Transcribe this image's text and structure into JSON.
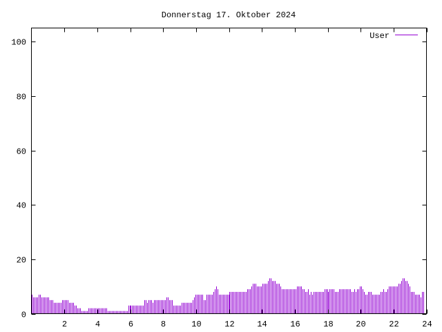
{
  "chart_data": {
    "type": "bar",
    "title": "Donnerstag 17. Oktober 2024",
    "xlabel": "",
    "ylabel": "",
    "xlim": [
      0,
      24
    ],
    "ylim": [
      0,
      105
    ],
    "x_ticks": [
      2,
      4,
      6,
      8,
      10,
      12,
      14,
      16,
      18,
      20,
      22,
      24
    ],
    "y_ticks": [
      0,
      20,
      40,
      60,
      80,
      100
    ],
    "grid": false,
    "legend_position": "top-right",
    "x_interval_minutes": 5,
    "series": [
      {
        "name": "User",
        "color": "#9400d3",
        "values": [
          7,
          6,
          6,
          6,
          6,
          7,
          7,
          6,
          6,
          6,
          6,
          6,
          6,
          5,
          5,
          5,
          4,
          4,
          4,
          4,
          4,
          4,
          5,
          5,
          5,
          5,
          5,
          4,
          4,
          4,
          4,
          3,
          3,
          2,
          2,
          2,
          1,
          1,
          1,
          1,
          1,
          2,
          2,
          2,
          2,
          2,
          2,
          2,
          2,
          2,
          2,
          2,
          2,
          2,
          2,
          1,
          1,
          1,
          1,
          1,
          1,
          1,
          1,
          1,
          1,
          1,
          1,
          1,
          1,
          1,
          3,
          3,
          3,
          3,
          3,
          3,
          3,
          3,
          3,
          3,
          3,
          3,
          5,
          5,
          4,
          5,
          5,
          5,
          4,
          5,
          5,
          5,
          5,
          5,
          5,
          5,
          5,
          5,
          6,
          6,
          5,
          5,
          5,
          3,
          3,
          3,
          3,
          3,
          3,
          4,
          4,
          4,
          4,
          4,
          4,
          4,
          4,
          5,
          6,
          7,
          7,
          7,
          7,
          7,
          7,
          5,
          5,
          7,
          7,
          7,
          7,
          7,
          8,
          9,
          10,
          9,
          7,
          7,
          7,
          7,
          7,
          7,
          7,
          7,
          8,
          8,
          8,
          8,
          8,
          8,
          8,
          8,
          8,
          8,
          8,
          8,
          8,
          9,
          9,
          9,
          10,
          11,
          11,
          11,
          10,
          10,
          10,
          10,
          11,
          11,
          11,
          11,
          12,
          13,
          13,
          12,
          12,
          12,
          11,
          11,
          11,
          10,
          9,
          9,
          9,
          9,
          9,
          9,
          9,
          9,
          9,
          9,
          9,
          10,
          10,
          10,
          10,
          9,
          9,
          8,
          8,
          9,
          7,
          8,
          7,
          8,
          8,
          8,
          8,
          8,
          8,
          8,
          8,
          9,
          9,
          9,
          8,
          9,
          9,
          9,
          9,
          8,
          8,
          8,
          9,
          9,
          9,
          9,
          9,
          9,
          9,
          9,
          9,
          8,
          8,
          9,
          8,
          9,
          9,
          10,
          10,
          9,
          8,
          7,
          7,
          8,
          8,
          8,
          7,
          7,
          7,
          7,
          7,
          7,
          8,
          8,
          9,
          8,
          8,
          9,
          10,
          10,
          10,
          10,
          10,
          10,
          10,
          11,
          11,
          12,
          13,
          13,
          12,
          12,
          11,
          10,
          8,
          8,
          8,
          7,
          7,
          7,
          7,
          6,
          8,
          8
        ]
      }
    ]
  }
}
